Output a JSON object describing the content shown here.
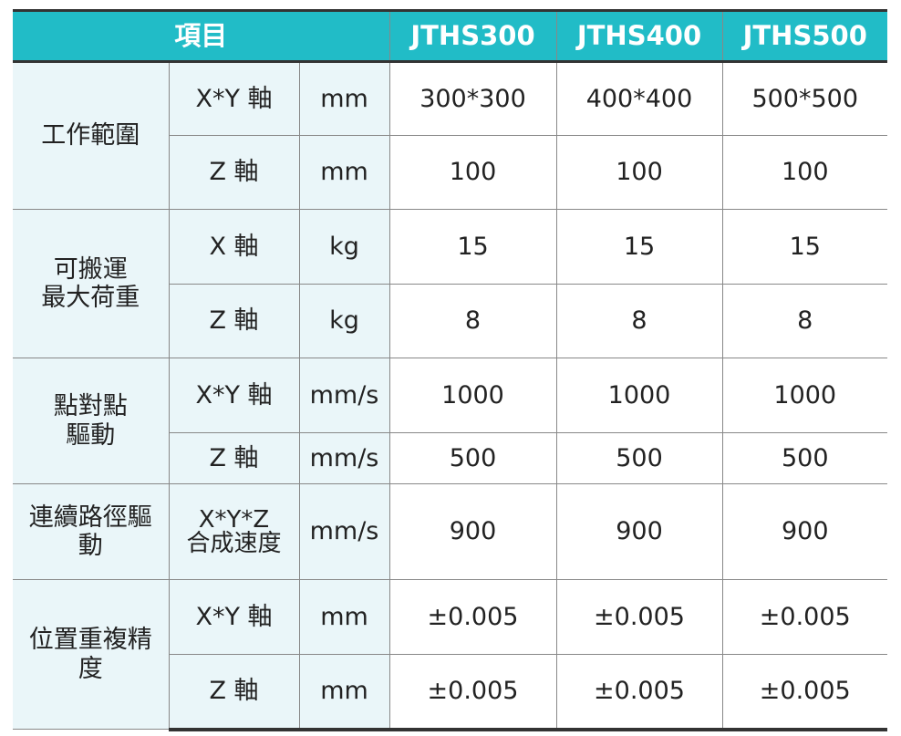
{
  "header": {
    "item": "項目",
    "models": [
      "JTHS300",
      "JTHS400",
      "JTHS500"
    ]
  },
  "groups": [
    {
      "label": "工作範圍",
      "rows": [
        {
          "axis": "X*Y 軸",
          "unit": "mm",
          "values": [
            "300*300",
            "400*400",
            "500*500"
          ]
        },
        {
          "axis": "Z 軸",
          "unit": "mm",
          "values": [
            "100",
            "100",
            "100"
          ]
        }
      ]
    },
    {
      "label": "可搬運\n最大荷重",
      "rows": [
        {
          "axis": "X 軸",
          "unit": "kg",
          "values": [
            "15",
            "15",
            "15"
          ]
        },
        {
          "axis": "Z 軸",
          "unit": "kg",
          "values": [
            "8",
            "8",
            "8"
          ]
        }
      ]
    },
    {
      "label": "點對點\n驅動",
      "rows": [
        {
          "axis": "X*Y 軸",
          "unit": "mm/s",
          "values": [
            "1000",
            "1000",
            "1000"
          ]
        },
        {
          "axis": "Z 軸",
          "unit": "mm/s",
          "values": [
            "500",
            "500",
            "500"
          ]
        }
      ]
    },
    {
      "label": "連續路徑驅\n動",
      "rows": [
        {
          "axis": "X*Y*Z\n合成速度",
          "unit": "mm/s",
          "values": [
            "900",
            "900",
            "900"
          ]
        }
      ]
    },
    {
      "label": "位置重複精\n度",
      "rows": [
        {
          "axis": "X*Y 軸",
          "unit": "mm",
          "values": [
            "±0.005",
            "±0.005",
            "±0.005"
          ]
        },
        {
          "axis": "Z 軸",
          "unit": "mm",
          "values": [
            "±0.005",
            "±0.005",
            "±0.005"
          ]
        }
      ]
    }
  ],
  "colors": {
    "header": "#21bcc7",
    "label_bg": "#eaf6f9"
  }
}
